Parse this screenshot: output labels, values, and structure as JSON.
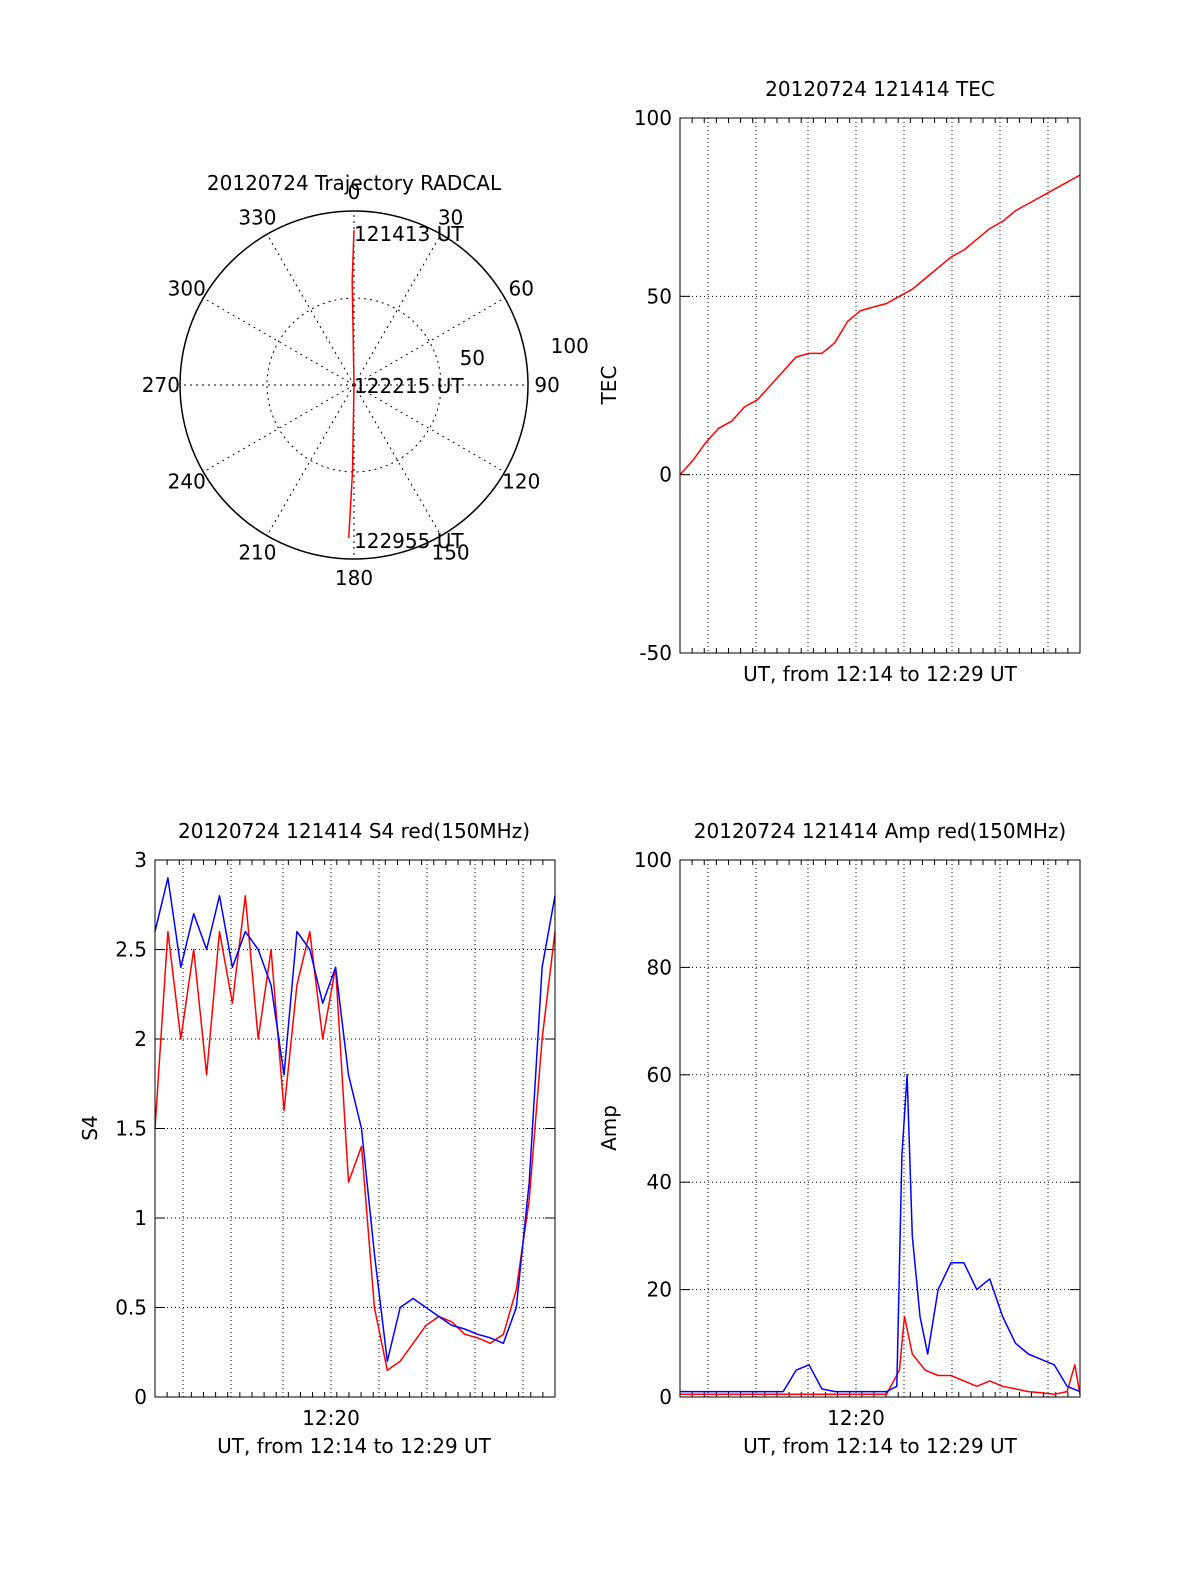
{
  "colors": {
    "red": "#ff0000",
    "blue": "#0000ff",
    "axis": "#000000"
  },
  "chart_data": [
    {
      "type": "polar",
      "title": "20120724 Trajectory RADCAL",
      "radial_range": [
        0,
        100
      ],
      "radial_labels": [
        "50",
        "100"
      ],
      "angle_labels": [
        "0",
        "30",
        "60",
        "90",
        "120",
        "150",
        "180",
        "210",
        "240",
        "270",
        "300",
        "330"
      ],
      "annotations": [
        "121413 UT",
        "122215 UT",
        "122955 UT"
      ],
      "series": [
        {
          "color": "red",
          "points": [
            {
              "azimuth_deg": 0,
              "distance": 89
            },
            {
              "azimuth_deg": 359,
              "distance": 60
            },
            {
              "azimuth_deg": 0,
              "distance": 0
            },
            {
              "azimuth_deg": 181,
              "distance": 50
            },
            {
              "azimuth_deg": 182,
              "distance": 88
            }
          ]
        }
      ]
    },
    {
      "type": "line",
      "title": "20120724 121414 TEC",
      "xlabel": "UT, from 12:14 to 12:29 UT",
      "ylabel": "TEC",
      "xlim": [
        0,
        15.5
      ],
      "ylim": [
        -50,
        100
      ],
      "yticks": [
        "-50",
        "0",
        "50",
        "100"
      ],
      "grid": true,
      "series": [
        {
          "color": "red",
          "points": [
            [
              0,
              0
            ],
            [
              0.5,
              4
            ],
            [
              1,
              9
            ],
            [
              1.5,
              13
            ],
            [
              2,
              15
            ],
            [
              2.5,
              19
            ],
            [
              3,
              21
            ],
            [
              3.5,
              25
            ],
            [
              4,
              29
            ],
            [
              4.5,
              33
            ],
            [
              5,
              34
            ],
            [
              5.5,
              34
            ],
            [
              6,
              37
            ],
            [
              6.5,
              43
            ],
            [
              7,
              46
            ],
            [
              7.5,
              47
            ],
            [
              8,
              48
            ],
            [
              8.5,
              50
            ],
            [
              9,
              52
            ],
            [
              9.5,
              55
            ],
            [
              10,
              58
            ],
            [
              10.5,
              61
            ],
            [
              11,
              63
            ],
            [
              11.5,
              66
            ],
            [
              12,
              69
            ],
            [
              12.5,
              71
            ],
            [
              13,
              74
            ],
            [
              13.5,
              76
            ],
            [
              14,
              78
            ],
            [
              14.5,
              80
            ],
            [
              15,
              82
            ],
            [
              15.5,
              84
            ]
          ]
        }
      ]
    },
    {
      "type": "line",
      "title": "20120724 121414 S4 red(150MHz)",
      "xlabel": "UT, from 12:14 to 12:29 UT",
      "ylabel": "S4",
      "xlim": [
        0,
        15.5
      ],
      "ylim": [
        0,
        3
      ],
      "yticks": [
        "0",
        "0.5",
        "1",
        "1.5",
        "2",
        "2.5",
        "3"
      ],
      "xticks": [
        "12:20"
      ],
      "grid": true,
      "series": [
        {
          "color": "red",
          "points": [
            [
              0,
              1.5
            ],
            [
              0.5,
              2.6
            ],
            [
              1,
              2.0
            ],
            [
              1.5,
              2.5
            ],
            [
              2,
              1.8
            ],
            [
              2.5,
              2.6
            ],
            [
              3,
              2.2
            ],
            [
              3.5,
              2.8
            ],
            [
              4,
              2.0
            ],
            [
              4.5,
              2.5
            ],
            [
              5,
              1.6
            ],
            [
              5.5,
              2.3
            ],
            [
              6,
              2.6
            ],
            [
              6.5,
              2.0
            ],
            [
              7,
              2.4
            ],
            [
              7.5,
              1.2
            ],
            [
              8,
              1.4
            ],
            [
              8.5,
              0.5
            ],
            [
              9,
              0.15
            ],
            [
              9.5,
              0.2
            ],
            [
              10,
              0.3
            ],
            [
              10.5,
              0.4
            ],
            [
              11,
              0.45
            ],
            [
              11.5,
              0.42
            ],
            [
              12,
              0.35
            ],
            [
              12.5,
              0.33
            ],
            [
              13,
              0.3
            ],
            [
              13.5,
              0.35
            ],
            [
              14,
              0.6
            ],
            [
              14.5,
              1.1
            ],
            [
              15,
              2.0
            ],
            [
              15.5,
              2.6
            ]
          ]
        },
        {
          "color": "blue",
          "points": [
            [
              0,
              2.6
            ],
            [
              0.5,
              2.9
            ],
            [
              1,
              2.4
            ],
            [
              1.5,
              2.7
            ],
            [
              2,
              2.5
            ],
            [
              2.5,
              2.8
            ],
            [
              3,
              2.4
            ],
            [
              3.5,
              2.6
            ],
            [
              4,
              2.5
            ],
            [
              4.5,
              2.3
            ],
            [
              5,
              1.8
            ],
            [
              5.5,
              2.6
            ],
            [
              6,
              2.5
            ],
            [
              6.5,
              2.2
            ],
            [
              7,
              2.4
            ],
            [
              7.5,
              1.8
            ],
            [
              8,
              1.5
            ],
            [
              8.5,
              0.8
            ],
            [
              9,
              0.2
            ],
            [
              9.5,
              0.5
            ],
            [
              10,
              0.55
            ],
            [
              10.5,
              0.5
            ],
            [
              11,
              0.45
            ],
            [
              11.5,
              0.4
            ],
            [
              12,
              0.38
            ],
            [
              12.5,
              0.35
            ],
            [
              13,
              0.33
            ],
            [
              13.5,
              0.3
            ],
            [
              14,
              0.5
            ],
            [
              14.5,
              1.2
            ],
            [
              15,
              2.4
            ],
            [
              15.5,
              2.8
            ]
          ]
        }
      ]
    },
    {
      "type": "line",
      "title": "20120724 121414 Amp red(150MHz)",
      "xlabel": "UT, from 12:14 to 12:29 UT",
      "ylabel": "Amp",
      "xlim": [
        0,
        15.5
      ],
      "ylim": [
        0,
        100
      ],
      "yticks": [
        "0",
        "20",
        "40",
        "60",
        "80",
        "100"
      ],
      "xticks": [
        "12:20"
      ],
      "grid": true,
      "series": [
        {
          "color": "red",
          "points": [
            [
              0,
              0.5
            ],
            [
              1,
              0.5
            ],
            [
              2,
              0.5
            ],
            [
              3,
              0.5
            ],
            [
              4,
              0.5
            ],
            [
              5,
              0.5
            ],
            [
              6,
              0.5
            ],
            [
              7,
              0.5
            ],
            [
              8,
              0.5
            ],
            [
              8.5,
              5
            ],
            [
              8.7,
              15
            ],
            [
              9,
              8
            ],
            [
              9.5,
              5
            ],
            [
              10,
              4
            ],
            [
              10.5,
              4
            ],
            [
              11,
              3
            ],
            [
              11.5,
              2
            ],
            [
              12,
              3
            ],
            [
              12.5,
              2
            ],
            [
              13,
              1.5
            ],
            [
              13.5,
              1
            ],
            [
              14,
              0.8
            ],
            [
              14.5,
              0.5
            ],
            [
              15,
              1
            ],
            [
              15.3,
              6
            ],
            [
              15.5,
              0.5
            ]
          ]
        },
        {
          "color": "blue",
          "points": [
            [
              0,
              1
            ],
            [
              1,
              1
            ],
            [
              2,
              1
            ],
            [
              3,
              1
            ],
            [
              4,
              1
            ],
            [
              4.5,
              5
            ],
            [
              5,
              6
            ],
            [
              5.5,
              1.5
            ],
            [
              6,
              1
            ],
            [
              7,
              1
            ],
            [
              8,
              1
            ],
            [
              8.4,
              2
            ],
            [
              8.6,
              45
            ],
            [
              8.8,
              60
            ],
            [
              9,
              30
            ],
            [
              9.3,
              15
            ],
            [
              9.6,
              8
            ],
            [
              10,
              20
            ],
            [
              10.5,
              25
            ],
            [
              11,
              25
            ],
            [
              11.5,
              20
            ],
            [
              12,
              22
            ],
            [
              12.5,
              15
            ],
            [
              13,
              10
            ],
            [
              13.5,
              8
            ],
            [
              14,
              7
            ],
            [
              14.5,
              6
            ],
            [
              15,
              2
            ],
            [
              15.5,
              1
            ]
          ]
        }
      ]
    }
  ]
}
